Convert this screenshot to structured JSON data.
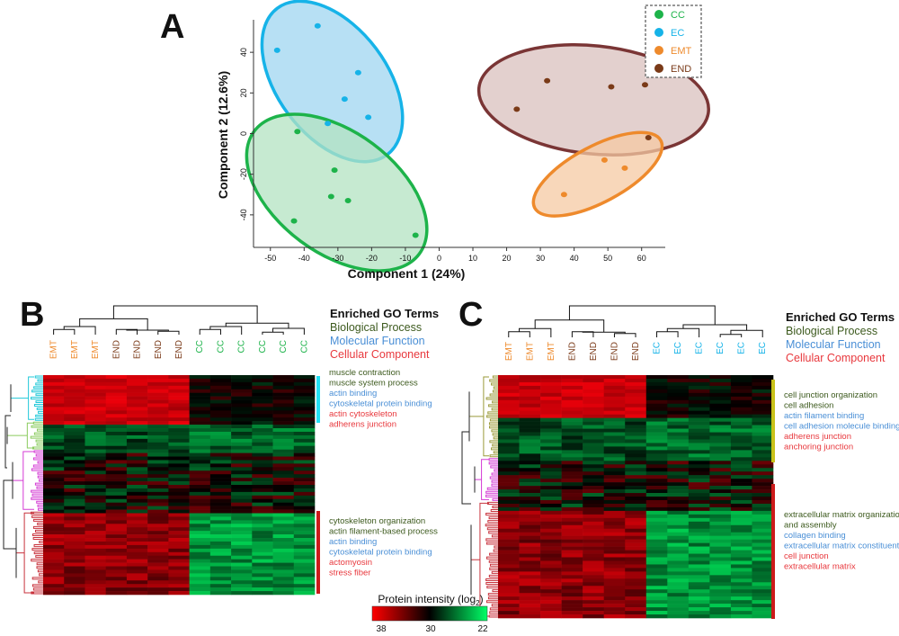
{
  "panels": {
    "A": "A",
    "B": "B",
    "C": "C"
  },
  "colors": {
    "CC": "#1db34a",
    "EC": "#16b3e8",
    "EMT": "#ee8a2c",
    "END": "#7a3a18",
    "bio": "#3d5a1e",
    "mol": "#4a8fd6",
    "cell": "#e8383d",
    "black": "#111111",
    "bar_cyan": "#22e1f5",
    "bar_red": "#cc1a1a",
    "bar_yellow": "#c9c21a",
    "tree_cyan": "#1fc8d8",
    "tree_green": "#8acb5e",
    "tree_magenta": "#d43ad4",
    "tree_red": "#c8323c",
    "tree_olive": "#9a9a3a",
    "tree_black": "#222222"
  },
  "chart_data": [
    {
      "type": "scatter",
      "xlabel": "Component 1 (24%)",
      "ylabel": "Component 2 (12.6%)",
      "xlim": [
        -55,
        67
      ],
      "ylim": [
        -56,
        56
      ],
      "xticks": [
        -50,
        -40,
        -30,
        -20,
        -10,
        0,
        10,
        20,
        30,
        40,
        50,
        60
      ],
      "yticks": [
        -40,
        -20,
        0,
        20,
        40
      ],
      "legend_position": "top-right",
      "series": [
        {
          "name": "CC",
          "points": [
            [
              -42,
              1
            ],
            [
              -31,
              -18
            ],
            [
              -32,
              -31
            ],
            [
              -27,
              -33
            ],
            [
              -43,
              -43
            ],
            [
              -7,
              -50
            ]
          ]
        },
        {
          "name": "EC",
          "points": [
            [
              -36,
              53
            ],
            [
              -48,
              41
            ],
            [
              -24,
              30
            ],
            [
              -28,
              17
            ],
            [
              -33,
              5
            ],
            [
              -21,
              8
            ]
          ]
        },
        {
          "name": "EMT",
          "points": [
            [
              49,
              -13
            ],
            [
              55,
              -17
            ],
            [
              37,
              -30
            ]
          ]
        },
        {
          "name": "END",
          "points": [
            [
              32,
              26
            ],
            [
              51,
              23
            ],
            [
              61,
              24
            ],
            [
              23,
              12
            ],
            [
              62,
              -2
            ]
          ]
        }
      ]
    },
    {
      "type": "heatmap",
      "legend_title": "Enriched GO Terms",
      "legend_categories": [
        "Biological Process",
        "Molecular Function",
        "Cellular Component"
      ],
      "columns": [
        "EMT",
        "EMT",
        "EMT",
        "END",
        "END",
        "END",
        "END",
        "CC",
        "CC",
        "CC",
        "CC",
        "CC",
        "CC"
      ],
      "upper_cluster_terms": [
        {
          "text": "muscle contraction",
          "type": "bio"
        },
        {
          "text": "muscle system process",
          "type": "bio"
        },
        {
          "text": "actin binding",
          "type": "mol"
        },
        {
          "text": "cytoskeletal protein binding",
          "type": "mol"
        },
        {
          "text": "actin cytoskeleton",
          "type": "cell"
        },
        {
          "text": "adherens junction",
          "type": "cell"
        }
      ],
      "lower_cluster_terms": [
        {
          "text": "cytoskeleton organization",
          "type": "bio"
        },
        {
          "text": "actin filament-based process",
          "type": "bio"
        },
        {
          "text": "actin binding",
          "type": "mol"
        },
        {
          "text": "cytoskeletal protein binding",
          "type": "mol"
        },
        {
          "text": "actomyosin",
          "type": "cell"
        },
        {
          "text": "stress fiber",
          "type": "cell"
        }
      ]
    },
    {
      "type": "heatmap",
      "legend_title": "Enriched GO Terms",
      "legend_categories": [
        "Biological Process",
        "Molecular Function",
        "Cellular Component"
      ],
      "columns": [
        "EMT",
        "EMT",
        "EMT",
        "END",
        "END",
        "END",
        "END",
        "EC",
        "EC",
        "EC",
        "EC",
        "EC",
        "EC"
      ],
      "upper_cluster_terms": [
        {
          "text": "cell junction organization",
          "type": "bio"
        },
        {
          "text": "cell adhesion",
          "type": "bio"
        },
        {
          "text": "actin filament binding",
          "type": "mol"
        },
        {
          "text": "cell adhesion molecule binding",
          "type": "mol"
        },
        {
          "text": "adherens junction",
          "type": "cell"
        },
        {
          "text": "anchoring junction",
          "type": "cell"
        }
      ],
      "lower_cluster_terms": [
        {
          "text": "extracellular matrix organization",
          "type": "bio"
        },
        {
          "text": "and assembly",
          "type": "bio"
        },
        {
          "text": "collagen binding",
          "type": "mol"
        },
        {
          "text": "extracellular matrix constituent",
          "type": "mol"
        },
        {
          "text": "cell junction",
          "type": "cell"
        },
        {
          "text": "extracellular matrix",
          "type": "cell"
        }
      ]
    }
  ],
  "colorbar": {
    "title": "Protein intensity (log",
    "title_sub": "2",
    "title_end": ")",
    "ticks": [
      "38",
      "30",
      "22"
    ],
    "colors": [
      "#ff0000",
      "#000000",
      "#00ff66"
    ]
  }
}
